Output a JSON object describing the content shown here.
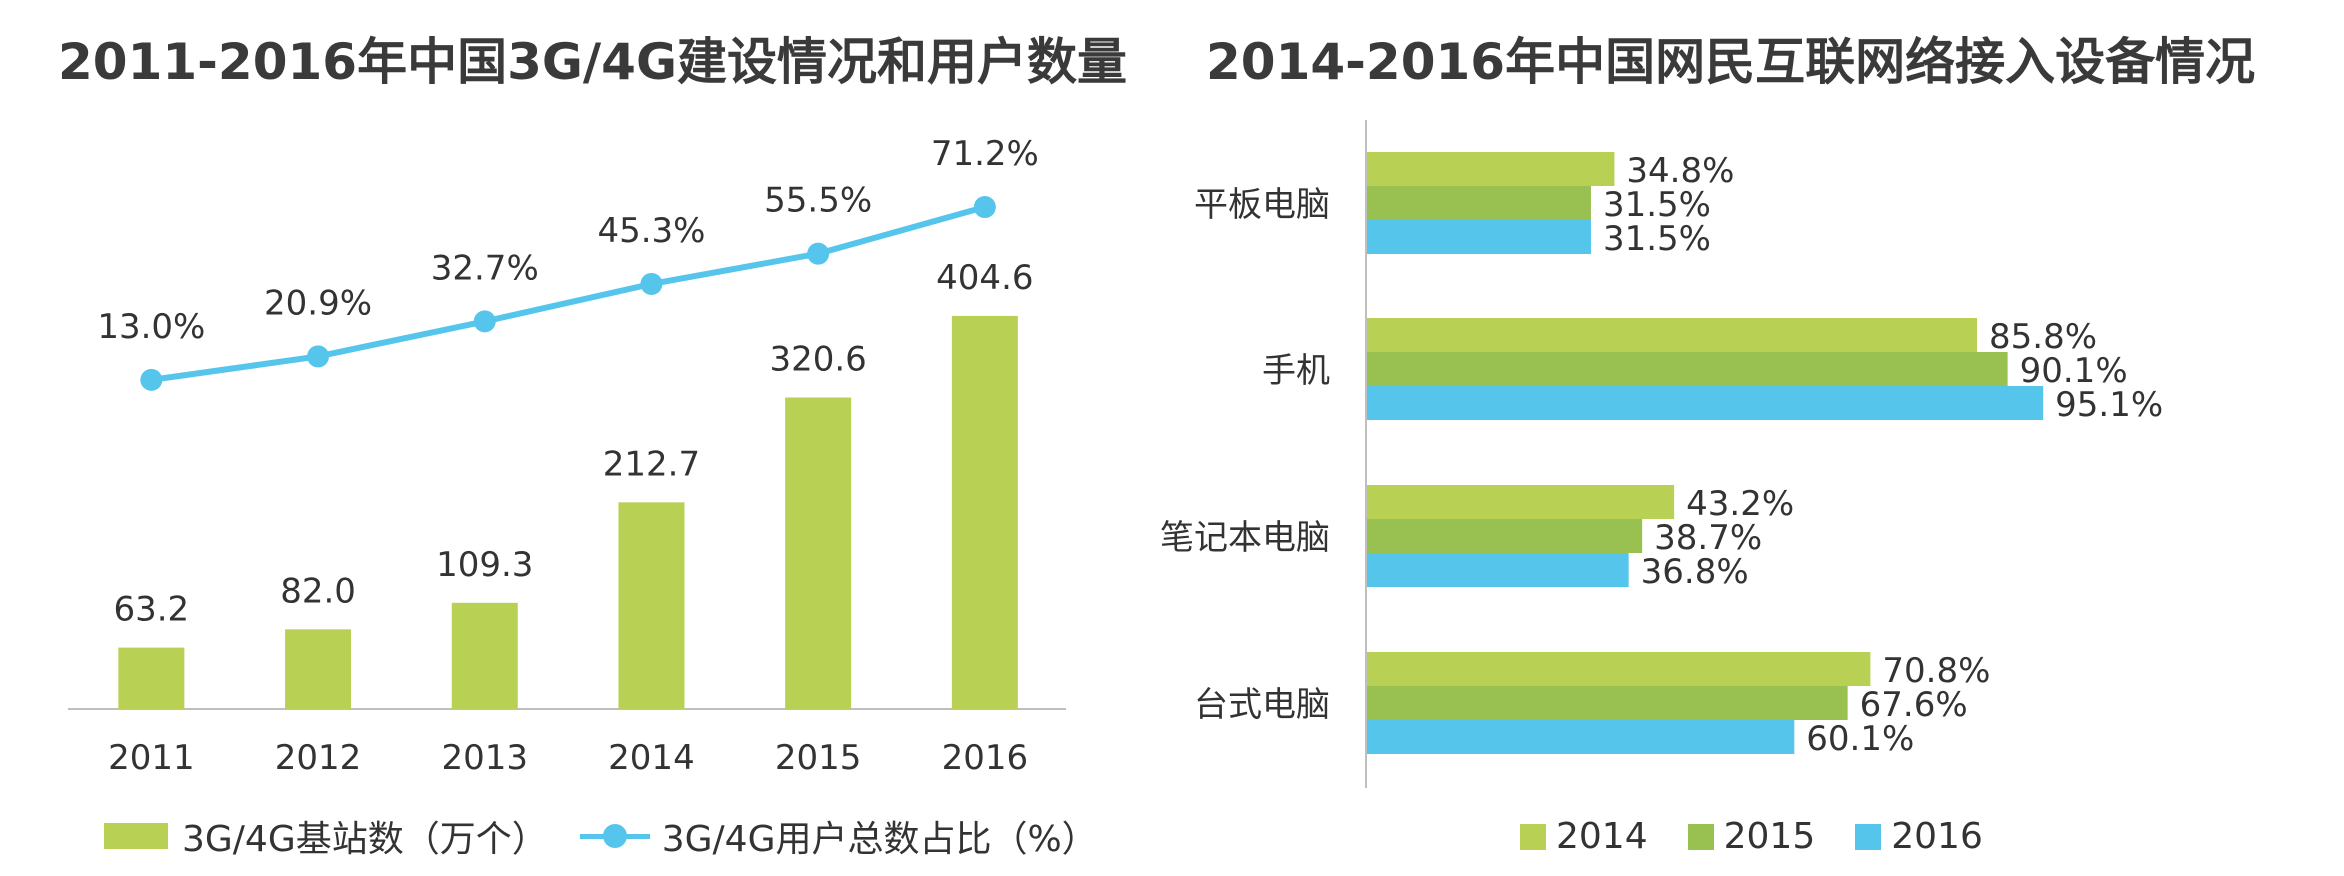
{
  "left_chart": {
    "title": "2011-2016年中国3G/4G建设情况和用户数量",
    "legend": {
      "bar_label": "3G/4G基站数（万个）",
      "line_label": "3G/4G用户总数占比（%）"
    }
  },
  "right_chart": {
    "title": "2014-2016年中国网民互联网络接入设备情况",
    "legend": {
      "items": [
        "2014",
        "2015",
        "2016"
      ]
    }
  },
  "colors": {
    "green": "#b8d155",
    "green_dark": "#98c152",
    "blue": "#55c5ec",
    "axis": "#bfbfbf",
    "text": "#333333"
  },
  "chart_data": [
    {
      "type": "bar+line",
      "title": "2011-2016年中国3G/4G建设情况和用户数量",
      "categories": [
        "2011",
        "2012",
        "2013",
        "2014",
        "2015",
        "2016"
      ],
      "series": [
        {
          "name": "3G/4G基站数（万个）",
          "type": "bar",
          "values": [
            63.2,
            82.0,
            109.3,
            212.7,
            320.6,
            404.6
          ],
          "labels": [
            "63.2",
            "82.0",
            "109.3",
            "212.7",
            "320.6",
            "404.6"
          ]
        },
        {
          "name": "3G/4G用户总数占比（%）",
          "type": "line",
          "values": [
            13.0,
            20.9,
            32.7,
            45.3,
            55.5,
            71.2
          ],
          "labels": [
            "13.0%",
            "20.9%",
            "32.7%",
            "45.3%",
            "55.5%",
            "71.2%"
          ]
        }
      ],
      "legend_position": "bottom"
    },
    {
      "type": "bar",
      "orientation": "horizontal",
      "title": "2014-2016年中国网民互联网络接入设备情况",
      "categories": [
        "平板电脑",
        "手机",
        "笔记本电脑",
        "台式电脑"
      ],
      "series": [
        {
          "name": "2014",
          "values": [
            34.8,
            85.8,
            43.2,
            70.8
          ],
          "labels": [
            "34.8%",
            "85.8%",
            "43.2%",
            "70.8%"
          ]
        },
        {
          "name": "2015",
          "values": [
            31.5,
            90.1,
            38.7,
            67.6
          ],
          "labels": [
            "31.5%",
            "90.1%",
            "38.7%",
            "67.6%"
          ]
        },
        {
          "name": "2016",
          "values": [
            31.5,
            95.1,
            36.8,
            60.1
          ],
          "labels": [
            "31.5%",
            "95.1%",
            "36.8%",
            "60.1%"
          ]
        }
      ],
      "legend_position": "bottom"
    }
  ]
}
